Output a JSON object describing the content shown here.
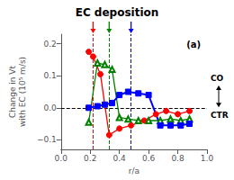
{
  "chart_data": {
    "type": "line",
    "title": "EC deposition",
    "xlabel": "r/a",
    "ylabel": "Change in Vt\nwith EC (10⁵ m/s)",
    "panel_label": "(a)",
    "annotations": [
      "CO",
      "CTR"
    ],
    "xlim": [
      0,
      1
    ],
    "ylim": [
      -0.13,
      0.23
    ],
    "xticks": [
      {
        "value": 0,
        "label": "0.0"
      },
      0.2,
      0.4,
      0.6,
      0.8,
      {
        "value": 1,
        "label": "1.0"
      }
    ],
    "yticks": [
      {
        "value": -0.1,
        "label": "−0.1"
      },
      {
        "value": 0,
        "label": "0.0"
      },
      0.1,
      0.2
    ],
    "grid": false,
    "hlines": [
      {
        "y": 0,
        "color": "black",
        "line_style": "dashed"
      }
    ],
    "vlines": [
      {
        "x": 0.22,
        "color": "red",
        "line_style": "dashed"
      },
      {
        "x": 0.33,
        "color": "green",
        "line_style": "dashed"
      },
      {
        "x": 0.48,
        "color": "blue",
        "line_style": "dashed"
      }
    ],
    "series": [
      {
        "color": "red",
        "marker": "circle",
        "x": [
          0.19,
          0.22,
          0.27,
          0.33,
          0.4,
          0.48,
          0.57,
          0.65,
          0.72,
          0.8,
          0.88
        ],
        "values": [
          0.175,
          0.16,
          0.105,
          -0.085,
          -0.065,
          -0.055,
          -0.04,
          -0.02,
          -0.01,
          -0.02,
          -0.01
        ]
      },
      {
        "color": "green",
        "marker": "triangle_open",
        "x": [
          0.19,
          0.25,
          0.3,
          0.35,
          0.4,
          0.46,
          0.53,
          0.6,
          0.68,
          0.75,
          0.82,
          0.88
        ],
        "values": [
          -0.045,
          0.14,
          0.135,
          0.12,
          -0.03,
          -0.035,
          -0.04,
          -0.04,
          -0.04,
          -0.035,
          -0.04,
          -0.035
        ]
      },
      {
        "color": "blue",
        "marker": "square",
        "x": [
          0.19,
          0.25,
          0.3,
          0.35,
          0.4,
          0.46,
          0.53,
          0.6,
          0.68,
          0.75,
          0.82,
          0.88
        ],
        "values": [
          0.0,
          0.005,
          0.01,
          0.015,
          0.04,
          0.05,
          0.045,
          0.04,
          -0.055,
          -0.055,
          -0.055,
          -0.05
        ]
      }
    ]
  }
}
